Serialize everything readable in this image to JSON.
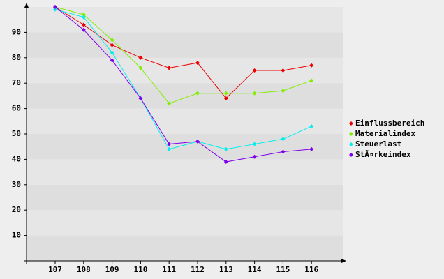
{
  "chart_data": {
    "type": "line",
    "categories": [
      "107",
      "108",
      "109",
      "110",
      "111",
      "112",
      "113",
      "114",
      "115",
      "116"
    ],
    "series": [
      {
        "name": "Einflussbereich",
        "color": "#ee0000",
        "values": [
          100,
          93,
          85,
          80,
          76,
          78,
          64,
          75,
          75,
          77
        ]
      },
      {
        "name": "Materialindex",
        "color": "#80ee00",
        "values": [
          100,
          97,
          87,
          76,
          62,
          66,
          66,
          66,
          67,
          71
        ]
      },
      {
        "name": "Steuerlast",
        "color": "#00eeee",
        "values": [
          99,
          96,
          82,
          64,
          44,
          47,
          44,
          46,
          48,
          53
        ]
      },
      {
        "name": "StÃ¤rkeindex",
        "color": "#8000ee",
        "values": [
          100,
          91,
          79,
          64,
          46,
          47,
          39,
          41,
          43,
          44
        ]
      }
    ],
    "ylim": [
      0,
      100
    ],
    "yticks": [
      10,
      20,
      30,
      40,
      50,
      60,
      70,
      80,
      90
    ],
    "grid": true
  }
}
